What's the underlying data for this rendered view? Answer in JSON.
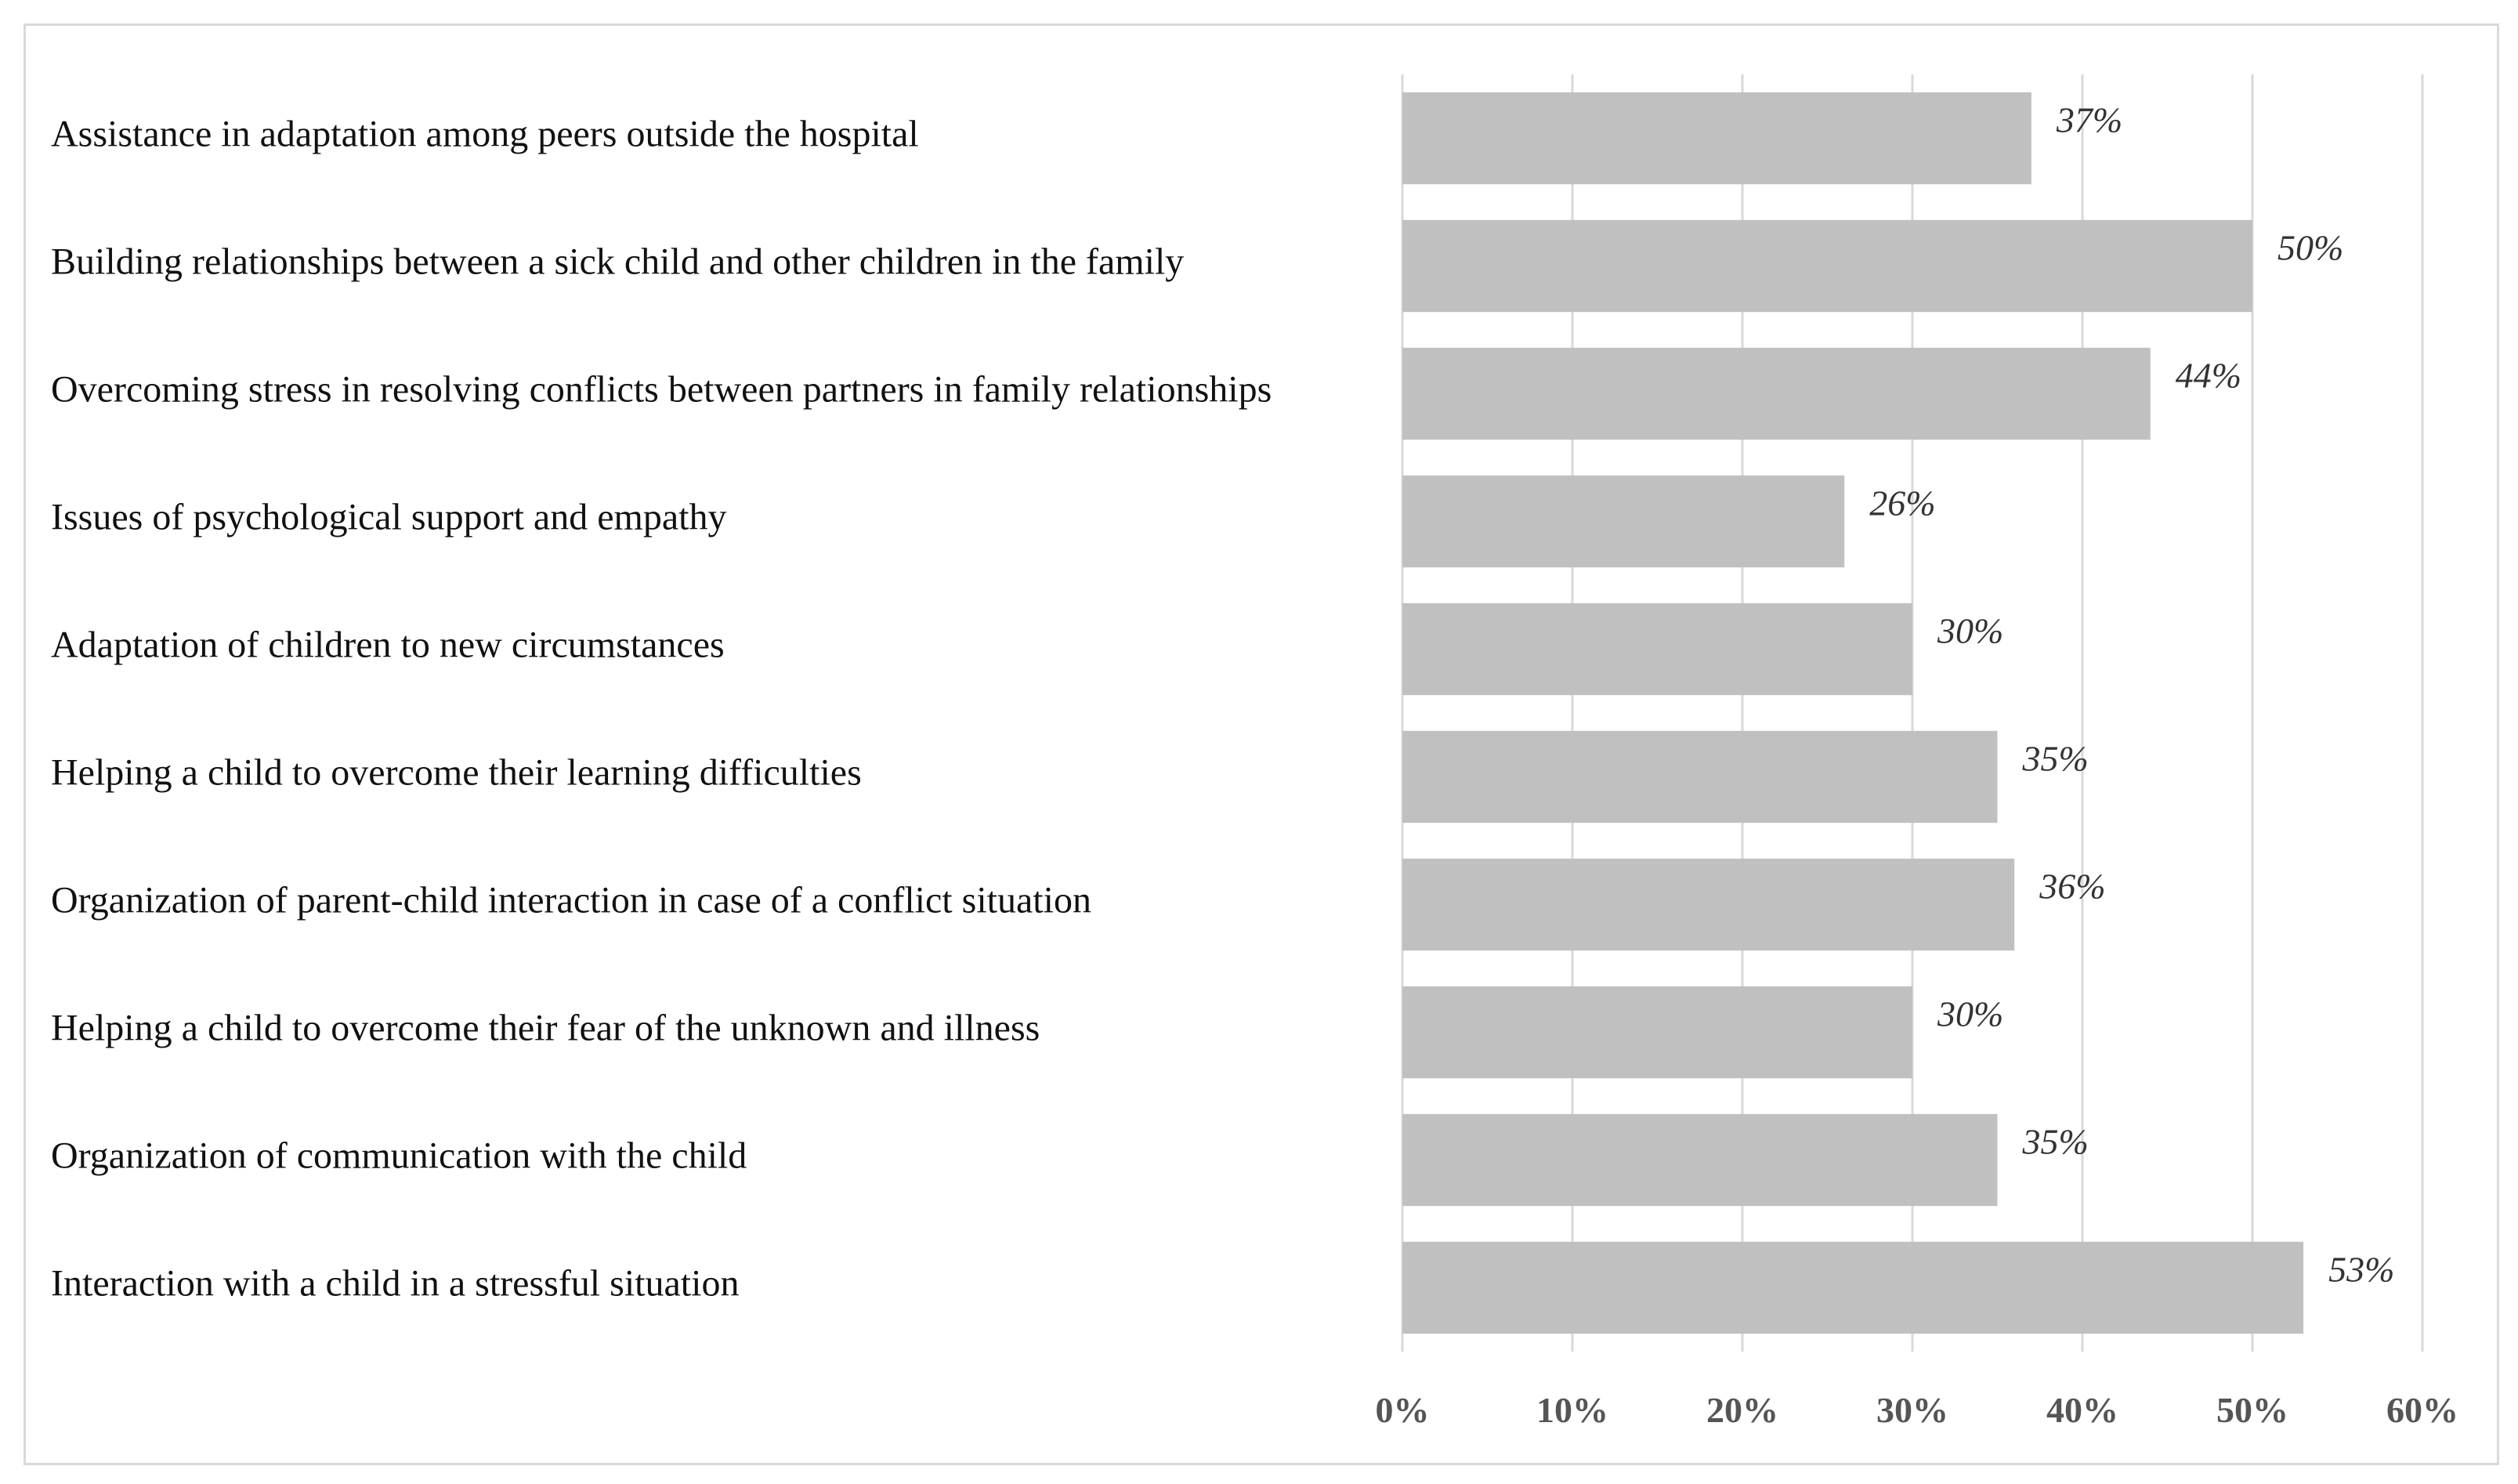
{
  "chart_data": {
    "type": "bar",
    "orientation": "horizontal",
    "title": "",
    "xlabel": "",
    "ylabel": "",
    "xlim": [
      0,
      60
    ],
    "grid": true,
    "categories": [
      "Assistance in adaptation among peers outside the hospital",
      "Building relationships between a sick child and other children in the family",
      "Overcoming stress in resolving conflicts between partners in family relationships",
      "Issues of psychological support and empathy",
      "Adaptation of children to new circumstances",
      "Helping a child to overcome their learning difficulties",
      "Organization of parent-child interaction in case of a conflict situation",
      "Helping a child to overcome their fear of the unknown and illness",
      "Organization of communication with the child",
      "Interaction with a child in a stressful situation"
    ],
    "values": [
      37,
      50,
      44,
      26,
      30,
      35,
      36,
      30,
      35,
      53
    ],
    "value_labels": [
      "37%",
      "50%",
      "44%",
      "26%",
      "30%",
      "35%",
      "36%",
      "30%",
      "35%",
      "53%"
    ],
    "x_ticks": [
      0,
      10,
      20,
      30,
      40,
      50,
      60
    ],
    "x_tick_labels": [
      "0%",
      "10%",
      "20%",
      "30%",
      "40%",
      "50%",
      "60%"
    ],
    "bar_color": "#c0c0c0",
    "grid_color": "#d9d9d9"
  }
}
